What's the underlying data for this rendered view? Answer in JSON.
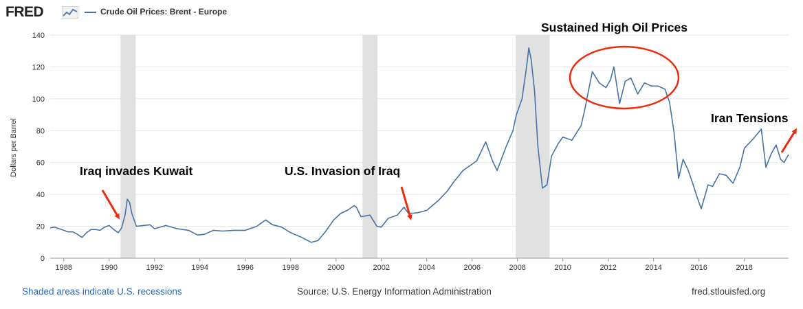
{
  "header": {
    "logo": "FRED",
    "logo_icon": "fred-graph-icon",
    "legend_label": "Crude Oil Prices: Brent - Europe"
  },
  "footer": {
    "recessions_note": "Shaded areas indicate U.S. recessions",
    "source": "Source: U.S. Energy Information Administration",
    "site": "fred.stlouisfed.org"
  },
  "colors": {
    "series": "#4572a7",
    "recession": "#e1e1e1",
    "annotation_arrow": "#ee2a0c",
    "annotation_circle": "#ee2a0c"
  },
  "chart_data": {
    "type": "line",
    "title": "",
    "xlabel": "",
    "ylabel": "Dollars per Barrel",
    "xlim": [
      1987.4,
      2019.95
    ],
    "ylim": [
      0,
      140
    ],
    "grid": "horizontal",
    "yticks": [
      0,
      20,
      40,
      60,
      80,
      100,
      120,
      140
    ],
    "xticks": [
      "1988",
      "1990",
      "1992",
      "1994",
      "1996",
      "1998",
      "2000",
      "2002",
      "2004",
      "2006",
      "2008",
      "2010",
      "2012",
      "2014",
      "2016",
      "2018"
    ],
    "recessions": [
      [
        1990.5,
        1991.17
      ],
      [
        2001.17,
        2001.83
      ],
      [
        2007.92,
        2009.42
      ]
    ],
    "series": [
      {
        "values": [
          [
            1987.4,
            19
          ],
          [
            1987.6,
            19.5
          ],
          [
            1987.8,
            18.5
          ],
          [
            1988.0,
            17.5
          ],
          [
            1988.2,
            16.5
          ],
          [
            1988.4,
            16.5
          ],
          [
            1988.6,
            15
          ],
          [
            1988.8,
            13
          ],
          [
            1989.0,
            16
          ],
          [
            1989.2,
            18
          ],
          [
            1989.4,
            18
          ],
          [
            1989.6,
            17.5
          ],
          [
            1989.8,
            19.5
          ],
          [
            1990.0,
            20.5
          ],
          [
            1990.2,
            18
          ],
          [
            1990.4,
            16
          ],
          [
            1990.55,
            19
          ],
          [
            1990.7,
            27
          ],
          [
            1990.8,
            37
          ],
          [
            1990.9,
            35
          ],
          [
            1991.0,
            28
          ],
          [
            1991.2,
            20
          ],
          [
            1991.5,
            20.5
          ],
          [
            1991.8,
            21
          ],
          [
            1992.0,
            18.5
          ],
          [
            1992.5,
            20.5
          ],
          [
            1993.0,
            18.5
          ],
          [
            1993.5,
            17.5
          ],
          [
            1993.9,
            14.5
          ],
          [
            1994.2,
            15
          ],
          [
            1994.6,
            17.5
          ],
          [
            1995.0,
            17
          ],
          [
            1995.5,
            17.5
          ],
          [
            1996.0,
            17.5
          ],
          [
            1996.5,
            20
          ],
          [
            1996.9,
            24
          ],
          [
            1997.2,
            21
          ],
          [
            1997.6,
            19.5
          ],
          [
            1998.0,
            16
          ],
          [
            1998.5,
            13
          ],
          [
            1998.9,
            10
          ],
          [
            1999.2,
            11
          ],
          [
            1999.5,
            16
          ],
          [
            1999.9,
            24
          ],
          [
            2000.2,
            28
          ],
          [
            2000.5,
            30
          ],
          [
            2000.8,
            33
          ],
          [
            2000.9,
            32
          ],
          [
            2001.1,
            26
          ],
          [
            2001.5,
            27
          ],
          [
            2001.8,
            20
          ],
          [
            2002.0,
            19.5
          ],
          [
            2002.3,
            25
          ],
          [
            2002.7,
            27
          ],
          [
            2003.0,
            32
          ],
          [
            2003.2,
            28
          ],
          [
            2003.6,
            28.5
          ],
          [
            2004.0,
            30
          ],
          [
            2004.5,
            36
          ],
          [
            2004.9,
            42
          ],
          [
            2005.2,
            48
          ],
          [
            2005.6,
            55
          ],
          [
            2005.9,
            58
          ],
          [
            2006.2,
            61
          ],
          [
            2006.6,
            73
          ],
          [
            2006.9,
            61
          ],
          [
            2007.1,
            55
          ],
          [
            2007.5,
            70
          ],
          [
            2007.8,
            80
          ],
          [
            2007.95,
            90
          ],
          [
            2008.2,
            100
          ],
          [
            2008.4,
            120
          ],
          [
            2008.5,
            132
          ],
          [
            2008.6,
            125
          ],
          [
            2008.75,
            105
          ],
          [
            2008.9,
            70
          ],
          [
            2009.1,
            44
          ],
          [
            2009.3,
            46
          ],
          [
            2009.5,
            64
          ],
          [
            2009.8,
            72
          ],
          [
            2010.0,
            76
          ],
          [
            2010.4,
            74
          ],
          [
            2010.8,
            83
          ],
          [
            2010.95,
            92
          ],
          [
            2011.2,
            110
          ],
          [
            2011.3,
            117
          ],
          [
            2011.6,
            110
          ],
          [
            2011.9,
            107
          ],
          [
            2012.1,
            112
          ],
          [
            2012.25,
            120
          ],
          [
            2012.5,
            97
          ],
          [
            2012.75,
            111
          ],
          [
            2013.0,
            113
          ],
          [
            2013.3,
            103
          ],
          [
            2013.6,
            110
          ],
          [
            2013.9,
            108
          ],
          [
            2014.2,
            108
          ],
          [
            2014.5,
            106
          ],
          [
            2014.7,
            98
          ],
          [
            2014.9,
            79
          ],
          [
            2015.1,
            50
          ],
          [
            2015.3,
            62
          ],
          [
            2015.5,
            56
          ],
          [
            2015.7,
            48
          ],
          [
            2015.95,
            37
          ],
          [
            2016.1,
            31
          ],
          [
            2016.4,
            46
          ],
          [
            2016.6,
            45
          ],
          [
            2016.9,
            53
          ],
          [
            2017.2,
            52
          ],
          [
            2017.5,
            47
          ],
          [
            2017.8,
            57
          ],
          [
            2018.0,
            69
          ],
          [
            2018.4,
            75
          ],
          [
            2018.75,
            81
          ],
          [
            2018.95,
            57
          ],
          [
            2019.2,
            66
          ],
          [
            2019.4,
            71
          ],
          [
            2019.6,
            62
          ],
          [
            2019.75,
            60
          ],
          [
            2019.95,
            65
          ]
        ]
      }
    ],
    "annotations": [
      {
        "label": "Iraq invades Kuwait"
      },
      {
        "label": "U.S. Invasion of Iraq"
      },
      {
        "label": "Sustained High Oil Prices"
      },
      {
        "label": "Iran Tensions"
      }
    ]
  }
}
